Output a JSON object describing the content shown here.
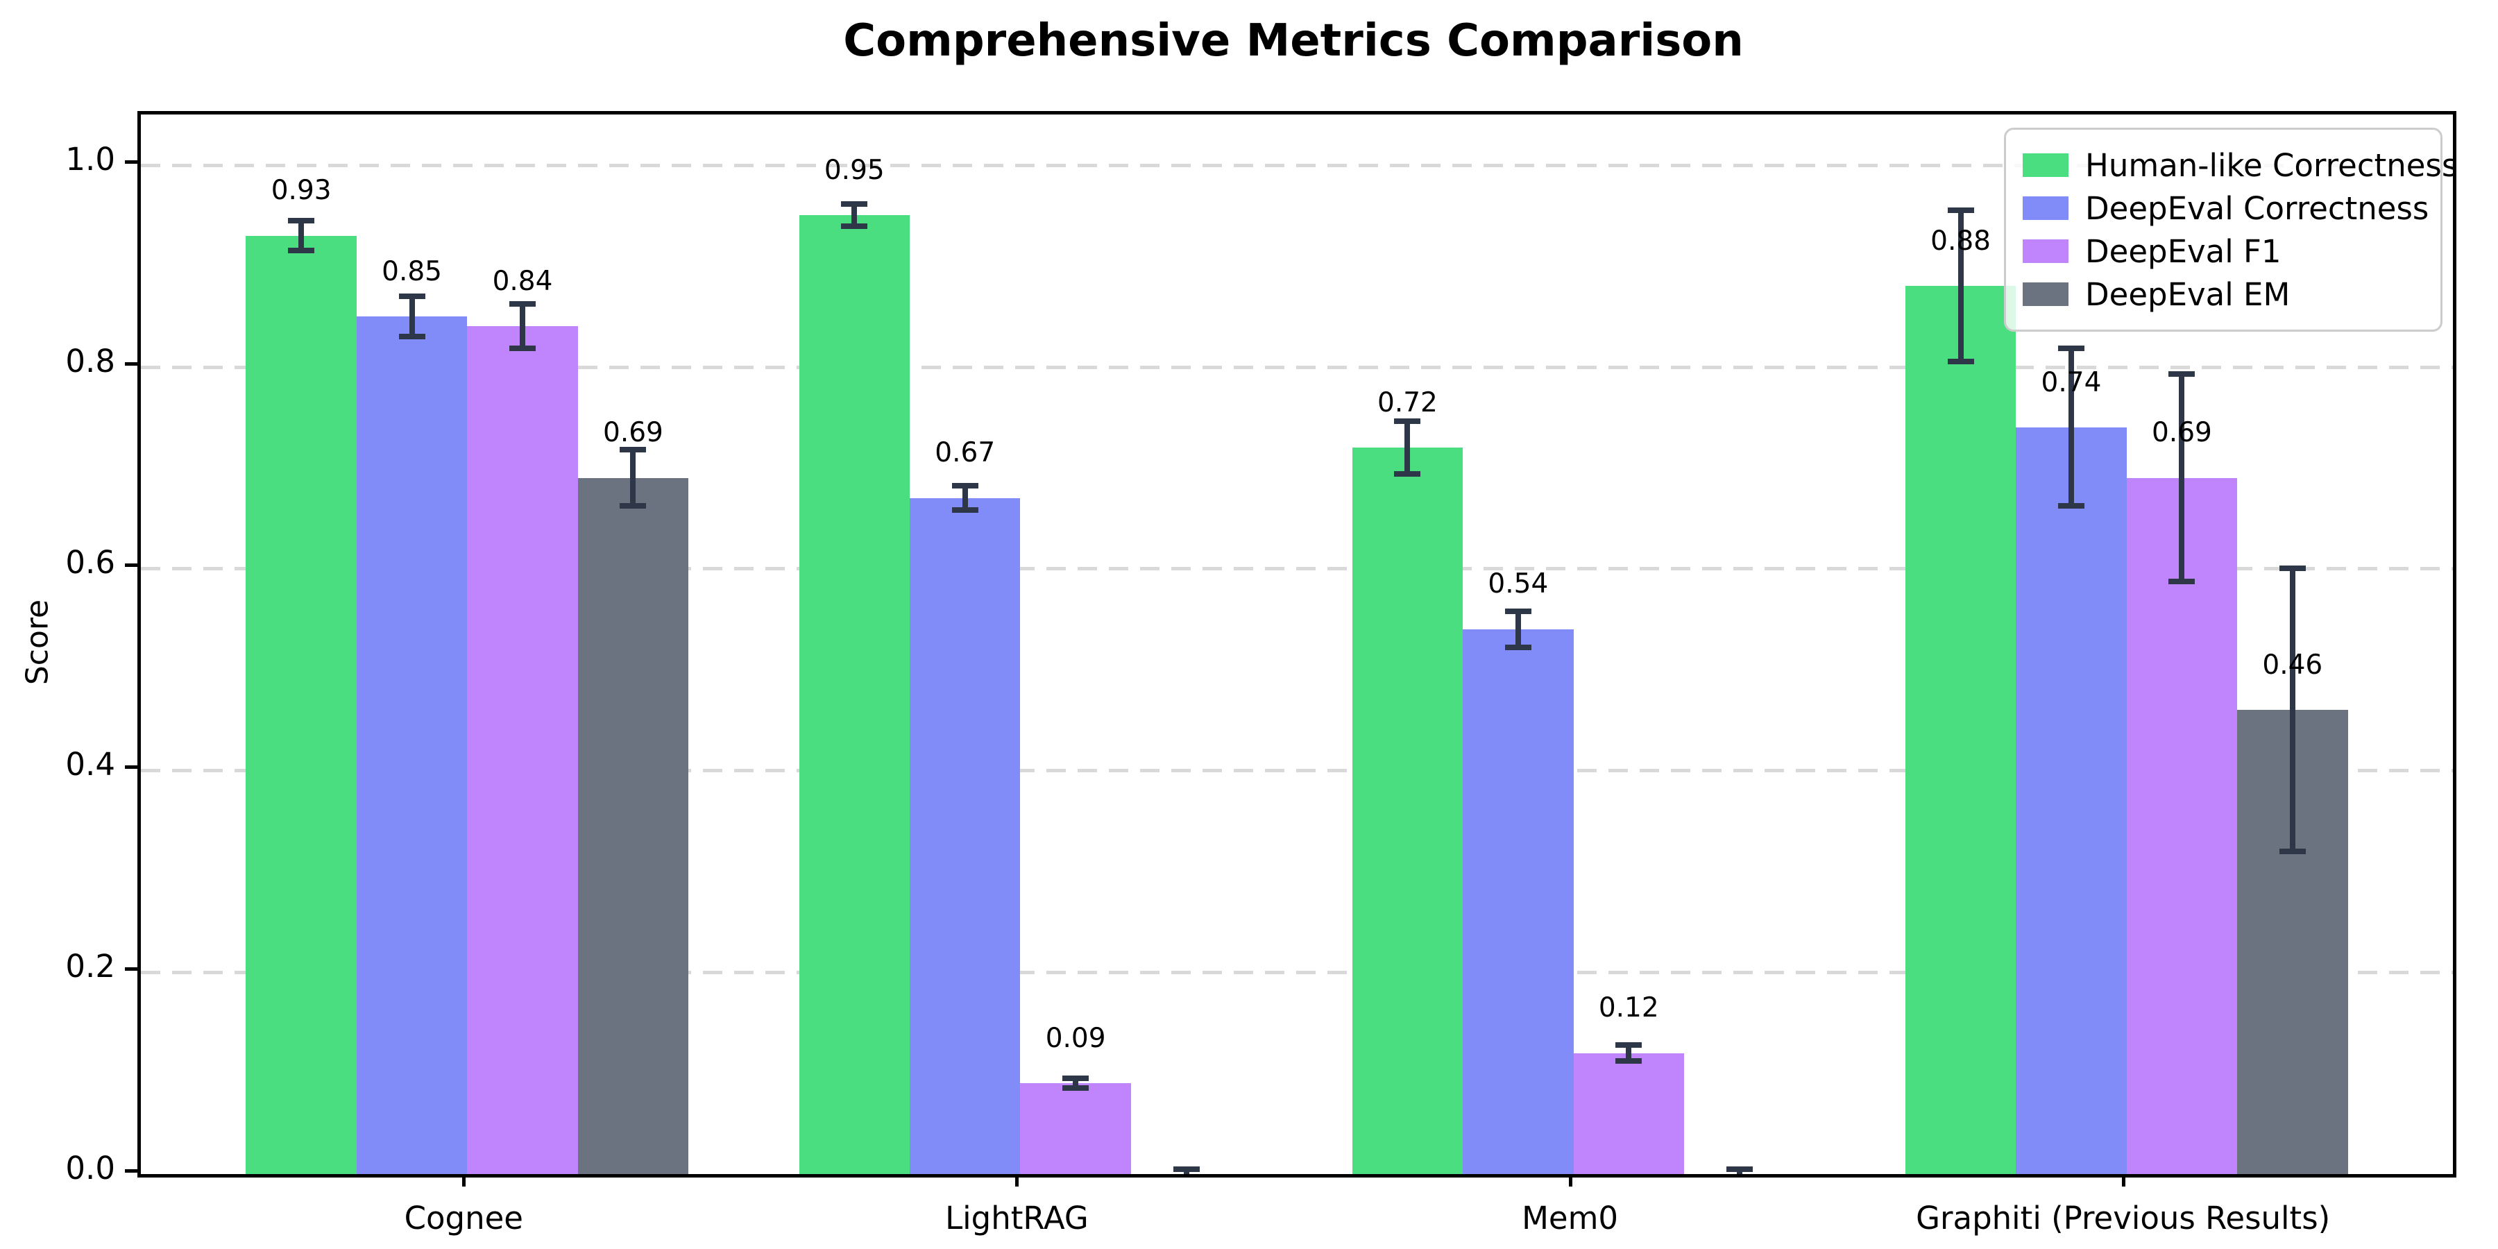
{
  "title": "Comprehensive Metrics Comparison",
  "ylabel": "Score",
  "chart_data": {
    "type": "bar",
    "categories": [
      "Cognee",
      "LightRAG",
      "Mem0",
      "Graphiti (Previous Results)"
    ],
    "series": [
      {
        "name": "Human-like Correctness",
        "color": "#4ade80",
        "values": [
          0.93,
          0.95,
          0.72,
          0.88
        ],
        "errors": [
          0.015,
          0.011,
          0.026,
          0.075
        ],
        "labels": [
          "0.93",
          "0.95",
          "0.72",
          "0.88"
        ]
      },
      {
        "name": "DeepEval Correctness",
        "color": "#818cf8",
        "values": [
          0.85,
          0.67,
          0.54,
          0.74
        ],
        "errors": [
          0.02,
          0.012,
          0.018,
          0.078
        ],
        "labels": [
          "0.85",
          "0.67",
          "0.54",
          "0.74"
        ]
      },
      {
        "name": "DeepEval F1",
        "color": "#c084fc",
        "values": [
          0.84,
          0.09,
          0.12,
          0.69
        ],
        "errors": [
          0.022,
          0.005,
          0.008,
          0.103
        ],
        "labels": [
          "0.84",
          "0.09",
          "0.12",
          "0.69"
        ]
      },
      {
        "name": "DeepEval EM",
        "color": "#6b7280",
        "values": [
          0.69,
          0.0,
          0.0,
          0.46
        ],
        "errors": [
          0.028,
          0.005,
          0.005,
          0.14
        ],
        "labels": [
          "0.69",
          "",
          "",
          "0.46"
        ]
      }
    ],
    "yticks": [
      "0.0",
      "0.2",
      "0.4",
      "0.6",
      "0.8",
      "1.0"
    ],
    "ylim": [
      0,
      1.05
    ],
    "grid": "dashed-horizontal",
    "legend_position": "upper-right",
    "errorbar_color": "#2d3748",
    "gridline_color": "#d9d9d9"
  }
}
